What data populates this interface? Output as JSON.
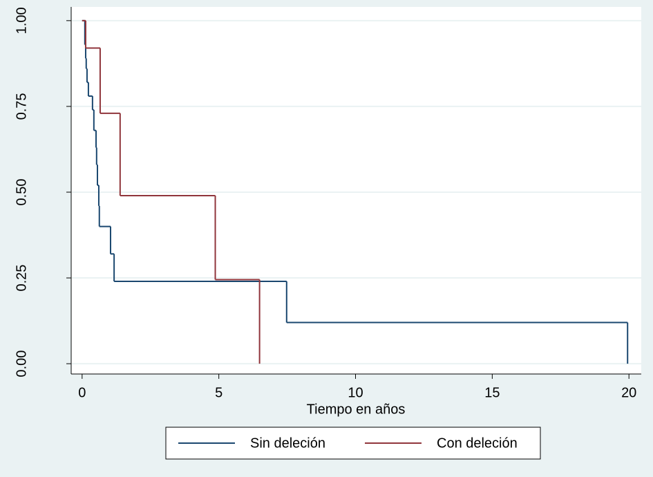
{
  "chart_data": {
    "type": "step",
    "xlabel": "Tiempo en años",
    "xlim": [
      -0.4,
      20.45
    ],
    "xticks": [
      0,
      5,
      10,
      15,
      20
    ],
    "ylim": [
      -0.03,
      1.04
    ],
    "yticks": [
      {
        "value": 0,
        "label": "0.00"
      },
      {
        "value": 0.25,
        "label": "0.25"
      },
      {
        "value": 0.5,
        "label": "0.50"
      },
      {
        "value": 0.75,
        "label": "0.75"
      },
      {
        "value": 1,
        "label": "1.00"
      }
    ],
    "grid": true,
    "legend": "bottom",
    "series": [
      {
        "name": "Sin deleción",
        "color": "#1a476f",
        "x": [
          0,
          0.1,
          0.13,
          0.15,
          0.18,
          0.23,
          0.38,
          0.43,
          0.51,
          0.53,
          0.56,
          0.61,
          0.63,
          1.04,
          1.17,
          7.48,
          19.95
        ],
        "values": [
          1.0,
          0.93,
          0.89,
          0.86,
          0.82,
          0.78,
          0.74,
          0.68,
          0.63,
          0.58,
          0.52,
          0.46,
          0.4,
          0.32,
          0.24,
          0.12,
          0
        ]
      },
      {
        "name": "Con deleción",
        "color": "#90353b",
        "x": [
          0,
          0.13,
          0.66,
          1.39,
          4.87,
          6.49
        ],
        "values": [
          1.0,
          0.92,
          0.73,
          0.49,
          0.245,
          0
        ]
      }
    ]
  }
}
